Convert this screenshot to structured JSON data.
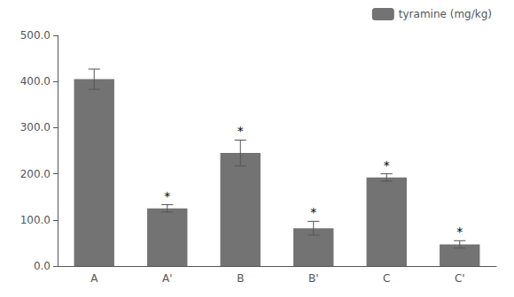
{
  "chart_data": {
    "type": "bar",
    "categories": [
      "A",
      "A'",
      "B",
      "B'",
      "C",
      "C'"
    ],
    "series": [
      {
        "name": "tyramine (mg/kg)",
        "color": "#737373",
        "values": [
          405.0,
          125.0,
          245.0,
          82.0,
          192.0,
          47.0
        ],
        "errors": [
          22.0,
          8.0,
          28.0,
          15.0,
          8.0,
          8.0
        ]
      }
    ],
    "annotations": [
      {
        "category": "A'",
        "text": "*"
      },
      {
        "category": "B",
        "text": "*"
      },
      {
        "category": "B'",
        "text": "*"
      },
      {
        "category": "C",
        "text": "*"
      },
      {
        "category": "C'",
        "text": "*"
      }
    ],
    "ylim": [
      0,
      500
    ],
    "yticks": [
      {
        "value": 0,
        "label": "0.0"
      },
      {
        "value": 100,
        "label": "100.0"
      },
      {
        "value": 200,
        "label": "200.0"
      },
      {
        "value": 300,
        "label": "300.0"
      },
      {
        "value": 400,
        "label": "400.0"
      },
      {
        "value": 500,
        "label": "500.0"
      }
    ],
    "legend": "upper right",
    "grid": false
  }
}
